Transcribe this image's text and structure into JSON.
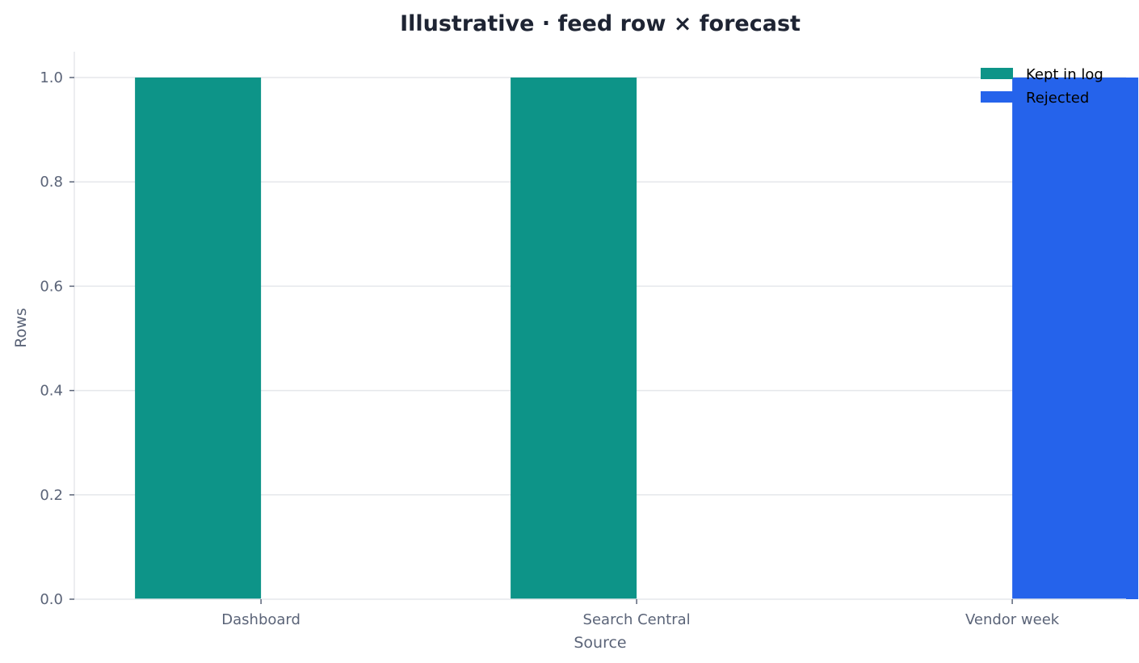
{
  "chart_data": {
    "type": "bar",
    "title": "Illustrative · feed row × forecast",
    "xlabel": "Source",
    "ylabel": "Rows",
    "categories": [
      "Dashboard",
      "Search Central",
      "Vendor week"
    ],
    "ylim": [
      0,
      1.0
    ],
    "yticks": [
      "0.0",
      "0.2",
      "0.4",
      "0.6",
      "0.8",
      "1.0"
    ],
    "grid": true,
    "legend_position": "top-right",
    "series": [
      {
        "name": "Kept in log",
        "color": "#0d9488",
        "values": [
          1,
          1,
          0
        ]
      },
      {
        "name": "Rejected",
        "color": "#2563eb",
        "values": [
          0,
          0,
          1
        ]
      }
    ]
  },
  "colors": {
    "title": "#1e2433",
    "axis_text": "#5b6478",
    "grid": "#e5e7eb",
    "axis_line": "#e5e7eb"
  }
}
